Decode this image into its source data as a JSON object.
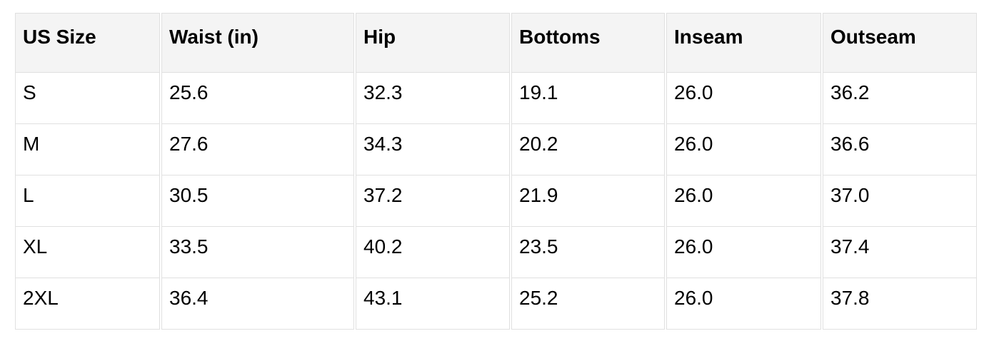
{
  "table": {
    "name": "size-chart",
    "columns": [
      "US Size",
      "Waist (in)",
      "Hip",
      "Bottoms",
      "Inseam",
      "Outseam"
    ],
    "rows": [
      [
        "S",
        "25.6",
        "32.3",
        "19.1",
        "26.0",
        "36.2"
      ],
      [
        "M",
        "27.6",
        "34.3",
        "20.2",
        "26.0",
        "36.6"
      ],
      [
        "L",
        "30.5",
        "37.2",
        "21.9",
        "26.0",
        "37.0"
      ],
      [
        "XL",
        "33.5",
        "40.2",
        "23.5",
        "26.0",
        "37.4"
      ],
      [
        "2XL",
        "36.4",
        "43.1",
        "25.2",
        "26.0",
        "37.8"
      ]
    ]
  },
  "colors": {
    "page_background": "#ffffff",
    "header_background": "#f4f4f4",
    "cell_background": "#ffffff",
    "border": "#e0e0e0",
    "text": "#000000"
  }
}
